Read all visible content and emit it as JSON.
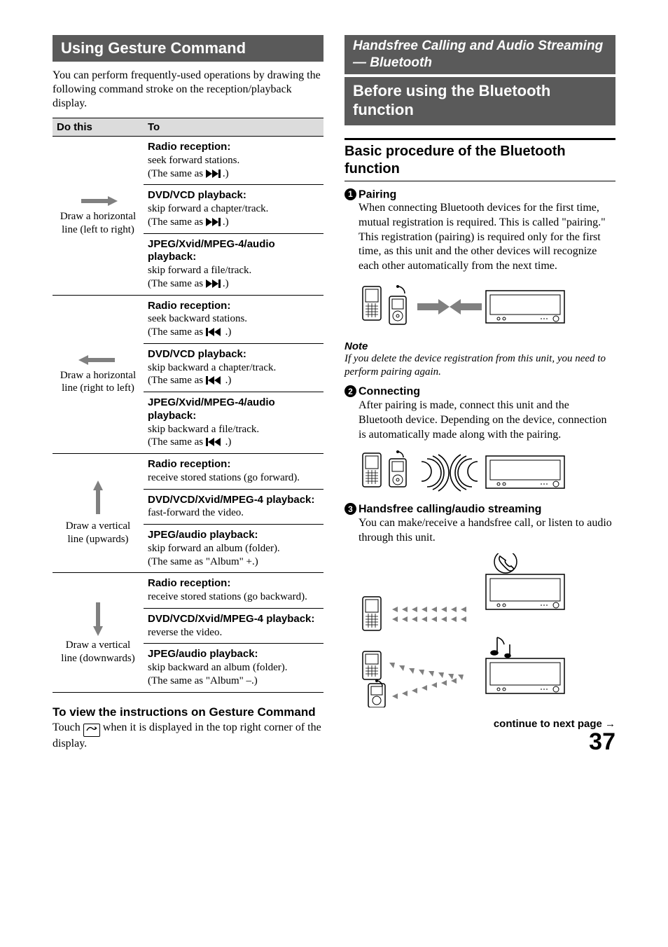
{
  "left": {
    "title": "Using Gesture Command",
    "intro": "You can perform frequently-used operations by drawing the following command stroke on the reception/playback display.",
    "table": {
      "header": {
        "col1": "Do this",
        "col2": "To"
      },
      "rows": [
        {
          "gesture": "Draw a horizontal line (left to right)",
          "arrow": "right",
          "subs": [
            {
              "title": "Radio reception:",
              "body": "seek forward stations.",
              "same": "(The same as ",
              "icon": "next",
              "tail": ".)"
            },
            {
              "title": "DVD/VCD playback:",
              "body": "skip forward a chapter/track.",
              "same": "(The same as ",
              "icon": "next",
              "tail": ".)"
            },
            {
              "title": "JPEG/Xvid/MPEG-4/audio playback:",
              "body": "skip forward a file/track.",
              "same": "(The same as ",
              "icon": "next",
              "tail": ".)"
            }
          ]
        },
        {
          "gesture": "Draw a horizontal line (right to left)",
          "arrow": "left",
          "subs": [
            {
              "title": "Radio reception:",
              "body": "seek backward stations.",
              "same": "(The same as ",
              "icon": "prev",
              "tail": " .)"
            },
            {
              "title": "DVD/VCD playback:",
              "body": "skip backward a chapter/track.",
              "same": "(The same as ",
              "icon": "prev",
              "tail": " .)"
            },
            {
              "title": "JPEG/Xvid/MPEG-4/audio playback:",
              "body": "skip backward a file/track.",
              "same": "(The same as ",
              "icon": "prev",
              "tail": " .)"
            }
          ]
        },
        {
          "gesture": "Draw a vertical line (upwards)",
          "arrow": "up",
          "subs": [
            {
              "title": "Radio reception:",
              "body": "receive stored stations (go forward)."
            },
            {
              "title": "DVD/VCD/Xvid/MPEG-4 playback:",
              "body": "fast-forward the video."
            },
            {
              "title": "JPEG/audio playback:",
              "body": "skip forward an album (folder).",
              "same": "(The same as \"Album\" +.)"
            }
          ]
        },
        {
          "gesture": "Draw a vertical line (downwards)",
          "arrow": "down",
          "subs": [
            {
              "title": "Radio reception:",
              "body": "receive stored stations (go backward)."
            },
            {
              "title": "DVD/VCD/Xvid/MPEG-4 playback:",
              "body": "reverse the video."
            },
            {
              "title": "JPEG/audio playback:",
              "body": "skip backward an album (folder).",
              "same": "(The same as \"Album\" –.)"
            }
          ]
        }
      ]
    },
    "sub_head": "To view the instructions on Gesture Command",
    "sub_body_a": "Touch ",
    "sub_body_b": " when it is displayed in the top right corner of the display."
  },
  "right": {
    "italic_head": "Handsfree Calling and Audio Streaming — Bluetooth",
    "title": "Before using the Bluetooth function",
    "h3": "Basic procedure of the Bluetooth function",
    "steps": [
      {
        "n": "1",
        "title": "Pairing",
        "body": "When connecting Bluetooth devices for the first time, mutual registration is required. This is called \"pairing.\" This registration (pairing) is required only for the first time, as this unit and the other devices will recognize each other automatically from the next time."
      },
      {
        "n": "2",
        "title": "Connecting",
        "body": "After pairing is made, connect this unit and the Bluetooth device. Depending on the device, connection is automatically made along with the pairing."
      },
      {
        "n": "3",
        "title": "Handsfree calling/audio streaming",
        "body": "You can make/receive a handsfree call, or listen to audio through this unit."
      }
    ],
    "note_label": "Note",
    "note_body": "If you delete the device registration from this unit, you need to perform pairing again.",
    "continue": "continue to next page →",
    "page": "37"
  }
}
